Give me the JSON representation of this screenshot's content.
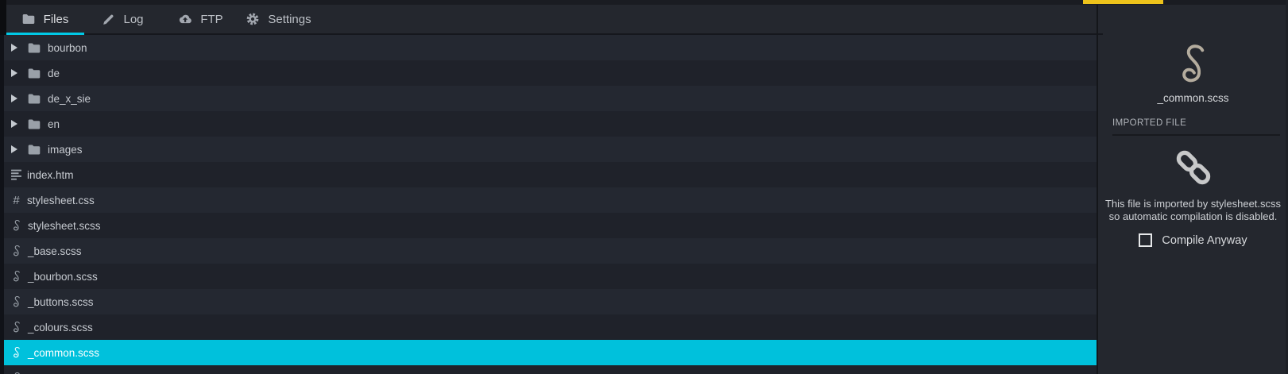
{
  "tabs": [
    {
      "label": "Files",
      "icon": "folder-icon",
      "active": true
    },
    {
      "label": "Log",
      "icon": "pencil-icon",
      "active": false
    },
    {
      "label": "FTP",
      "icon": "cloud-upload-icon",
      "active": false
    },
    {
      "label": "Settings",
      "icon": "gear-icon",
      "active": false
    }
  ],
  "progress_bar": {
    "visible": true
  },
  "file_list": [
    {
      "name": "bourbon",
      "type": "folder"
    },
    {
      "name": "de",
      "type": "folder"
    },
    {
      "name": "de_x_sie",
      "type": "folder"
    },
    {
      "name": "en",
      "type": "folder"
    },
    {
      "name": "images",
      "type": "folder"
    },
    {
      "name": "index.htm",
      "type": "html"
    },
    {
      "name": "stylesheet.css",
      "type": "css"
    },
    {
      "name": "stylesheet.scss",
      "type": "scss"
    },
    {
      "name": "_base.scss",
      "type": "scss"
    },
    {
      "name": "_bourbon.scss",
      "type": "scss"
    },
    {
      "name": "_buttons.scss",
      "type": "scss"
    },
    {
      "name": "_colours.scss",
      "type": "scss"
    },
    {
      "name": "_common.scss",
      "type": "scss",
      "selected": true
    },
    {
      "name": "",
      "type": "scss",
      "partial": true
    }
  ],
  "icons": {
    "css_hash_glyph": "#"
  },
  "detail_panel": {
    "file_title": "_common.scss",
    "section_label": "IMPORTED FILE",
    "message_line1": "This file is imported by stylesheet.scss",
    "message_line2": "so automatic compilation is disabled.",
    "compile_checkbox_label": "Compile Anyway",
    "compile_checkbox_checked": false
  },
  "colors": {
    "selection_cyan": "#00c1dc",
    "tab_underline_cyan": "#00c9e6",
    "progress_yellow": "#eec31b"
  }
}
